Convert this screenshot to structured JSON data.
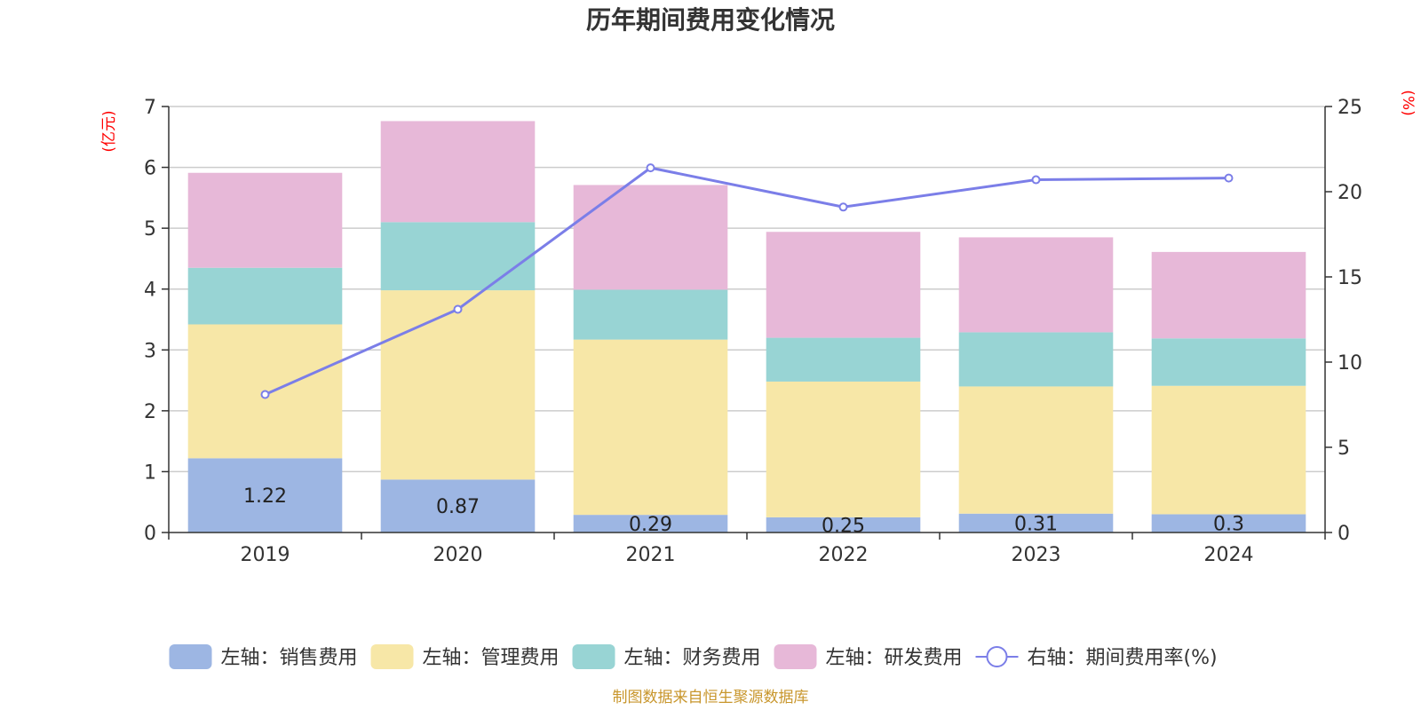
{
  "chart_data": {
    "type": "bar",
    "title": "历年期间费用变化情况",
    "categories": [
      "2019",
      "2020",
      "2021",
      "2022",
      "2023",
      "2024"
    ],
    "left_axis": {
      "unit": "(亿元)",
      "ylim": [
        0,
        7
      ],
      "ticks": [
        "0",
        "1",
        "2",
        "3",
        "4",
        "5",
        "6",
        "7"
      ]
    },
    "right_axis": {
      "unit": "(%)",
      "ylim": [
        0,
        25
      ],
      "ticks": [
        "0",
        "5",
        "10",
        "15",
        "20",
        "25"
      ]
    },
    "series": [
      {
        "name": "左轴：销售费用",
        "kind": "bar",
        "stack": "total",
        "axis": "left",
        "color": "#9db6e3",
        "values": [
          1.22,
          0.87,
          0.29,
          0.25,
          0.31,
          0.3
        ],
        "labels": [
          "1.22",
          "0.87",
          "0.29",
          "0.25",
          "0.31",
          "0.3"
        ]
      },
      {
        "name": "左轴：管理费用",
        "kind": "bar",
        "stack": "total",
        "axis": "left",
        "color": "#f7e7a7",
        "values": [
          2.2,
          3.11,
          2.88,
          2.23,
          2.09,
          2.11
        ]
      },
      {
        "name": "左轴：财务费用",
        "kind": "bar",
        "stack": "total",
        "axis": "left",
        "color": "#98d4d4",
        "values": [
          0.93,
          1.12,
          0.82,
          0.72,
          0.89,
          0.78
        ]
      },
      {
        "name": "左轴：研发费用",
        "kind": "bar",
        "stack": "total",
        "axis": "left",
        "color": "#e7b8d8",
        "values": [
          1.56,
          1.66,
          1.72,
          1.74,
          1.56,
          1.42
        ]
      },
      {
        "name": "右轴：期间费用率(%)",
        "kind": "line",
        "axis": "right",
        "color": "#7b7ee8",
        "values": [
          8.1,
          13.1,
          21.4,
          19.1,
          20.7,
          20.8
        ]
      }
    ],
    "grid": true,
    "legend_position": "bottom"
  },
  "source": "制图数据来自恒生聚源数据库"
}
